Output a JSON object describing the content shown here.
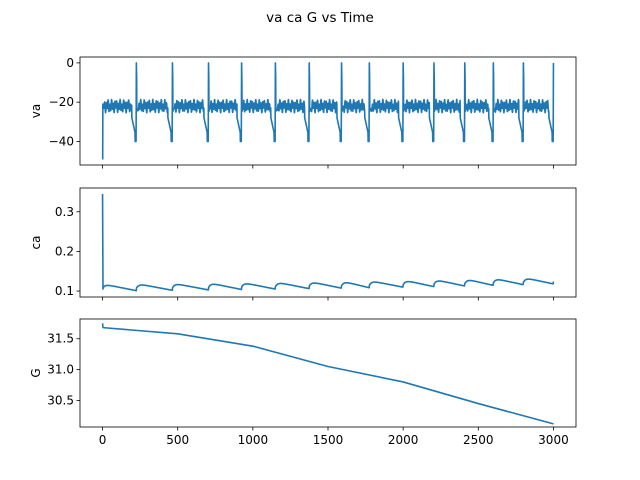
{
  "chart_data": {
    "type": "line",
    "title": "va ca G vs Time",
    "x_ticks": [
      0,
      500,
      1000,
      1500,
      2000,
      2500,
      3000
    ],
    "xlim": [
      -150,
      3150
    ],
    "panels": [
      {
        "ylabel": "va",
        "ylim": [
          -52,
          3
        ],
        "y_ticks": [
          0,
          -20,
          -40
        ],
        "y_tick_labels": [
          "0",
          "−20",
          "−40"
        ],
        "spike_times": [
          225,
          465,
          705,
          925,
          1150,
          1375,
          1590,
          1775,
          2000,
          2205,
          2410,
          2600,
          2800,
          3000
        ],
        "min_value": -49,
        "baseline": -22,
        "spike_peak": 0,
        "trough": -40
      },
      {
        "ylabel": "ca",
        "ylim": [
          0.085,
          0.36
        ],
        "y_ticks": [
          0.1,
          0.2,
          0.3
        ],
        "y_tick_labels": [
          "0.1",
          "0.2",
          "0.3"
        ],
        "initial_value": 0.345,
        "baseline_start": 0.105,
        "points": [
          [
            0,
            0.345
          ],
          [
            3,
            0.105
          ],
          [
            50,
            0.11
          ],
          [
            225,
            0.093
          ],
          [
            300,
            0.112
          ],
          [
            465,
            0.095
          ],
          [
            3000,
            0.132
          ]
        ]
      },
      {
        "ylabel": "G",
        "ylim": [
          30.07,
          31.82
        ],
        "y_ticks": [
          31.5,
          31.0,
          30.5
        ],
        "y_tick_labels": [
          "31.5",
          "31.0",
          "30.5"
        ],
        "points": [
          [
            0,
            31.75
          ],
          [
            3,
            31.68
          ],
          [
            500,
            31.58
          ],
          [
            1000,
            31.38
          ],
          [
            1500,
            31.05
          ],
          [
            2000,
            30.8
          ],
          [
            2500,
            30.45
          ],
          [
            3000,
            30.12
          ]
        ]
      }
    ]
  }
}
